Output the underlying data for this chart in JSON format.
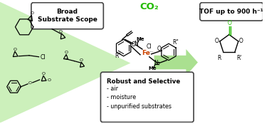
{
  "bg_color": "#ffffff",
  "green_light": "#ccf0bb",
  "green_dark": "#22bb00",
  "green_arrow": "#aae090",
  "box1_text": "Broad\nSubstrate Scope",
  "box2_text": "TOF up to 900 h⁻¹",
  "box3_title": "Robust and Selective",
  "box3_items": [
    "- air",
    "- moisture",
    "- unpurified substrates"
  ],
  "co2_text": "CO₂",
  "figsize": [
    3.78,
    1.74
  ],
  "dpi": 100
}
